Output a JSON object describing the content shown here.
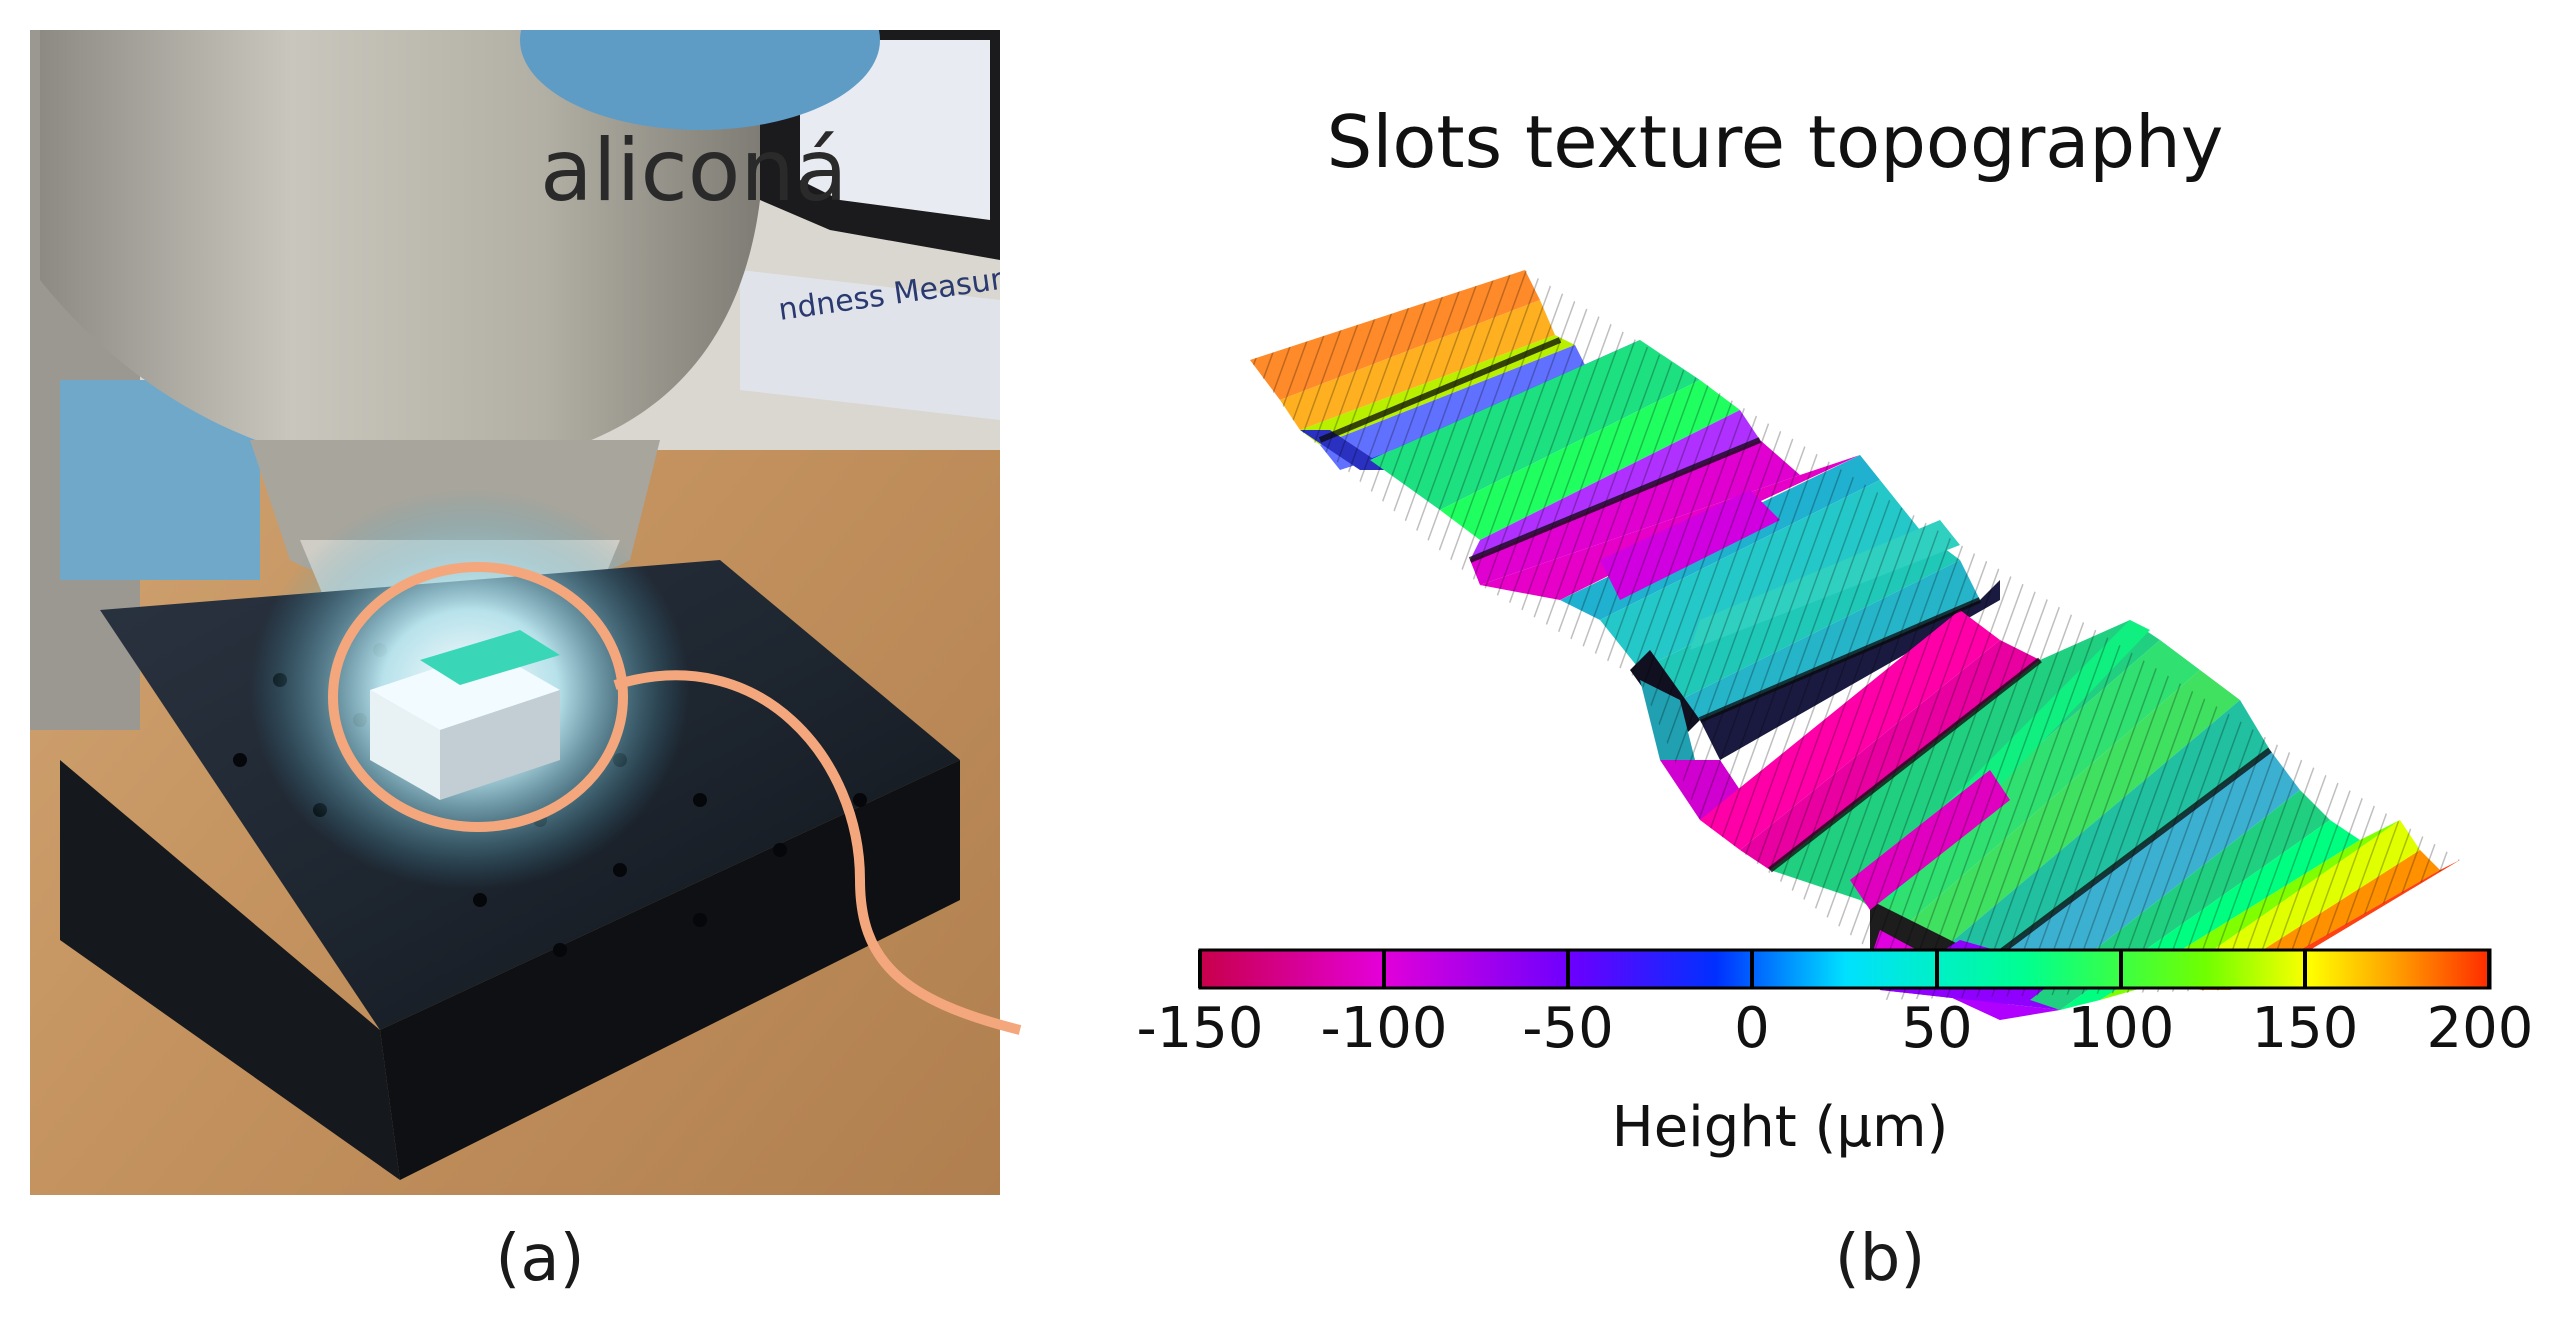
{
  "panel_a": {
    "caption": "(a)",
    "instrument_brand": "aliconá",
    "monitor_text": "ndness Measure"
  },
  "panel_b": {
    "caption": "(b)",
    "title": "Slots texture topography",
    "colorbar": {
      "label": "Height (μm)",
      "ticks": [
        "-150",
        "-100",
        "-50",
        "0",
        "50",
        "100",
        "150",
        "200"
      ],
      "min": -150,
      "max": 200,
      "colors": [
        "#c8004a",
        "#e400d8",
        "#6a00ff",
        "#0030ff",
        "#00e0ff",
        "#00ff90",
        "#70ff00",
        "#ffff00",
        "#ff9a00",
        "#ff2a00"
      ]
    }
  },
  "colors": {
    "highlight_ring": "#f4a77c",
    "wood_table": "#c89a68",
    "stage_black": "#1a1c22",
    "instrument_silver": "#b9b7ad"
  }
}
